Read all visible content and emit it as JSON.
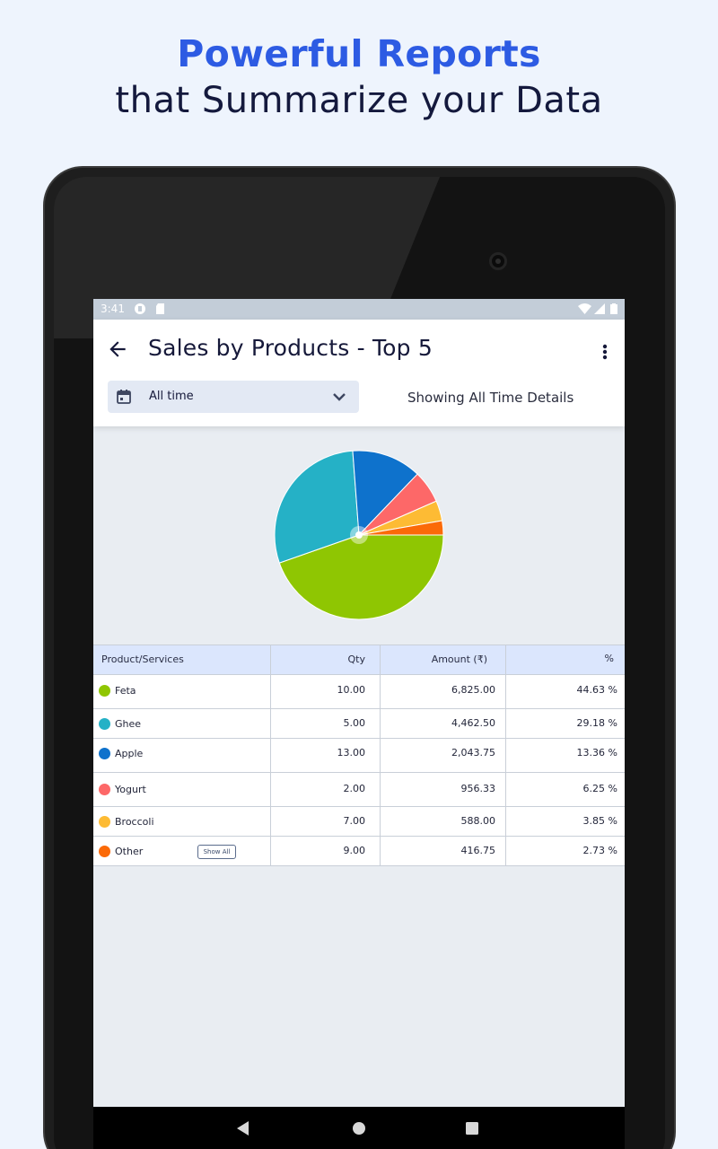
{
  "promo": {
    "title": "Powerful Reports",
    "subtitle": "that Summarize your Data"
  },
  "statusbar": {
    "time": "3:41"
  },
  "appbar": {
    "title": "Sales by Products - Top 5",
    "date_range": "All time",
    "showing_text": "Showing All Time Details"
  },
  "chart_data": {
    "type": "pie",
    "categories": [
      "Feta",
      "Ghee",
      "Apple",
      "Yogurt",
      "Broccoli",
      "Other"
    ],
    "values": [
      44.63,
      29.18,
      13.36,
      6.25,
      3.85,
      2.73
    ],
    "colors": [
      "#8fc602",
      "#25b1c6",
      "#0e72cc",
      "#fd6868",
      "#fdbb34",
      "#fb6a08"
    ],
    "title": ""
  },
  "table": {
    "headers": [
      "Product/Services",
      "Qty",
      "Amount (₹)",
      "%"
    ],
    "show_all_label": "Show All",
    "rows": [
      {
        "name": "Feta",
        "qty": "10.00",
        "amount": "6,825.00",
        "pct": "44.63 %",
        "color": "#8fc602"
      },
      {
        "name": "Ghee",
        "qty": "5.00",
        "amount": "4,462.50",
        "pct": "29.18 %",
        "color": "#25b1c6"
      },
      {
        "name": "Apple",
        "qty": "13.00",
        "amount": "2,043.75",
        "pct": "13.36 %",
        "color": "#0e72cc"
      },
      {
        "name": "Yogurt",
        "qty": "2.00",
        "amount": "956.33",
        "pct": "6.25 %",
        "color": "#fd6868"
      },
      {
        "name": "Broccoli",
        "qty": "7.00",
        "amount": "588.00",
        "pct": "3.85 %",
        "color": "#fdbb34"
      },
      {
        "name": "Other",
        "qty": "9.00",
        "amount": "416.75",
        "pct": "2.73 %",
        "color": "#fb6a08"
      }
    ]
  },
  "icons": {
    "back": "arrow-left-icon",
    "more": "more-vertical-icon",
    "calendar": "calendar-icon",
    "dropdown": "chevron-down-icon"
  }
}
